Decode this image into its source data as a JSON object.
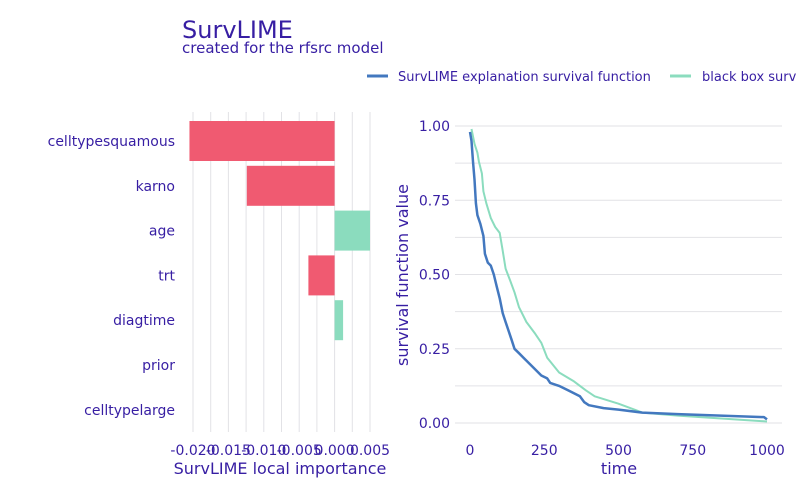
{
  "title": "SurvLIME",
  "subtitle": "created for the rfsrc model",
  "colors": {
    "text": "#371ea3",
    "negative": "#f05a71",
    "positive": "#8bdcbe",
    "explanation": "#4378bf",
    "black_box": "#8bdcbe",
    "grid": "#e2e2e6"
  },
  "chart_data": [
    {
      "type": "bar",
      "orientation": "horizontal",
      "categories": [
        "celltypesquamous",
        "karno",
        "age",
        "trt",
        "diagtime",
        "prior",
        "celltypelarge"
      ],
      "values": [
        -0.0205,
        -0.0124,
        0.005,
        -0.0037,
        0.0012,
        0,
        0
      ],
      "xlabel": "SurvLIME local importance",
      "xticks": [
        "-0.020",
        "-0.015",
        "-0.010",
        "-0.005",
        "0.000",
        "0.005"
      ],
      "xtick_values": [
        -0.02,
        -0.015,
        -0.01,
        -0.005,
        0,
        0.005
      ],
      "xlim": [
        -0.021,
        0.0055
      ],
      "grid": true
    },
    {
      "type": "line",
      "xlabel": "time",
      "ylabel": "survival function value",
      "xticks": [
        "0",
        "250",
        "500",
        "750",
        "1000"
      ],
      "xtick_values": [
        0,
        250,
        500,
        750,
        1000
      ],
      "yticks": [
        "0.00",
        "0.25",
        "0.50",
        "0.75",
        "1.00"
      ],
      "ytick_values": [
        0,
        0.25,
        0.5,
        0.75,
        1
      ],
      "xlim": [
        -50,
        1050
      ],
      "ylim": [
        -0.03,
        1.02
      ],
      "grid": true,
      "legend_position": "top",
      "series": [
        {
          "name": "SurvLIME explanation survival function",
          "x": [
            0,
            5,
            10,
            15,
            20,
            25,
            35,
            45,
            50,
            60,
            70,
            80,
            90,
            100,
            110,
            120,
            130,
            140,
            150,
            165,
            180,
            200,
            220,
            240,
            260,
            270,
            300,
            330,
            370,
            385,
            400,
            450,
            500,
            580,
            700,
            990,
            1000
          ],
          "y": [
            0.98,
            0.95,
            0.88,
            0.82,
            0.74,
            0.7,
            0.67,
            0.63,
            0.57,
            0.54,
            0.53,
            0.5,
            0.46,
            0.42,
            0.37,
            0.34,
            0.31,
            0.28,
            0.25,
            0.235,
            0.22,
            0.2,
            0.18,
            0.16,
            0.15,
            0.135,
            0.125,
            0.11,
            0.09,
            0.07,
            0.06,
            0.05,
            0.045,
            0.035,
            0.03,
            0.02,
            0.012
          ]
        },
        {
          "name": "black box surv",
          "x": [
            5,
            15,
            25,
            30,
            40,
            45,
            55,
            70,
            85,
            100,
            110,
            120,
            135,
            150,
            165,
            190,
            220,
            240,
            260,
            300,
            350,
            390,
            420,
            500,
            580,
            700,
            1000
          ],
          "y": [
            0.99,
            0.94,
            0.91,
            0.88,
            0.84,
            0.78,
            0.74,
            0.69,
            0.66,
            0.64,
            0.58,
            0.52,
            0.48,
            0.44,
            0.39,
            0.34,
            0.3,
            0.27,
            0.22,
            0.17,
            0.14,
            0.11,
            0.09,
            0.065,
            0.035,
            0.025,
            0.005
          ]
        }
      ]
    }
  ]
}
